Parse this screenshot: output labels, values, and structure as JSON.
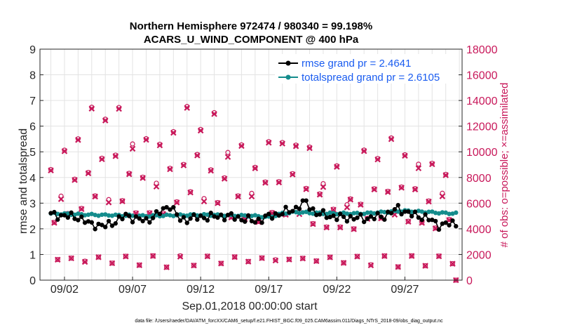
{
  "chart_data": {
    "type": "line",
    "title_line1": "Northern Hemisphere 972474 / 980340 = 99.198%",
    "title_line2": "ACARS_U_WIND_COMPONENT @ 400 hPa",
    "ylabel": "rmse and totalspread",
    "ylabel_right": "# of obs: o=possible; ×=assimilated",
    "xlabel": "Sep.01,2018 00:00:00 start",
    "footnote": "data file: /Users/raeder/DAI/ATM_forcXX/CAM6_setup/f.e21.FHIST_BGC.f09_025.CAM6assim.011/Diags_NTrS_2018-09/obs_diag_output.nc",
    "ylim": [
      0,
      9
    ],
    "ylim_right": [
      0,
      18000
    ],
    "xlim": [
      0.2,
      31.2
    ],
    "yticks": [
      "0",
      "1",
      "2",
      "3",
      "4",
      "5",
      "6",
      "7",
      "8",
      "9"
    ],
    "yticks_right": [
      "0",
      "2000",
      "4000",
      "6000",
      "8000",
      "10000",
      "12000",
      "14000",
      "16000",
      "18000"
    ],
    "xticks": [
      {
        "day": 2,
        "label": "09/02"
      },
      {
        "day": 7,
        "label": "09/07"
      },
      {
        "day": 12,
        "label": "09/12"
      },
      {
        "day": 17,
        "label": "09/17"
      },
      {
        "day": 22,
        "label": "09/22"
      },
      {
        "day": 27,
        "label": "09/27"
      }
    ],
    "grid": true,
    "legend_position": "top-right",
    "series": [
      {
        "name": "rmse grand pr = 2.4641",
        "color": "#000000",
        "axis": "left",
        "marker": "circle",
        "values": []
      },
      {
        "name": "totalspread grand pr = 2.6105",
        "color": "#148c8c",
        "axis": "left",
        "marker": "circle",
        "values": []
      },
      {
        "name": "possible obs",
        "color": "#c8185a",
        "axis": "right",
        "marker": "o",
        "values": []
      },
      {
        "name": "assimilated obs",
        "color": "#c8185a",
        "axis": "right",
        "marker": "x",
        "values": []
      }
    ],
    "colors": {
      "rmse": "#000000",
      "spread": "#148c8c",
      "obs": "#c8185a",
      "legend_text": "#1a5cf0",
      "grid": "#e3e3e3"
    }
  }
}
